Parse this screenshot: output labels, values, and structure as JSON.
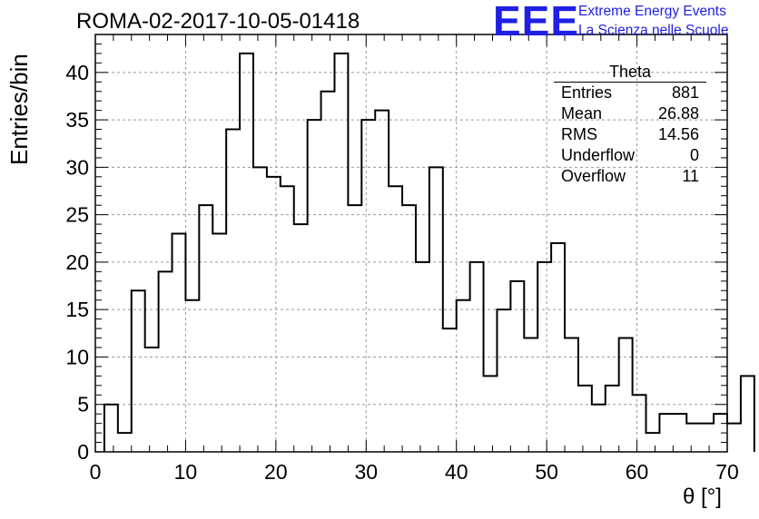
{
  "title": "ROMA-02-2017-10-05-01418",
  "logo": {
    "text": "EEE",
    "line1": "Extreme Energy Events",
    "line2": "La Scienza nelle Scuole",
    "color": "#1f1fe6"
  },
  "stats": {
    "name": "Theta",
    "rows": [
      {
        "label": "Entries",
        "value": "881"
      },
      {
        "label": "Mean",
        "value": "26.88"
      },
      {
        "label": "RMS",
        "value": "14.56"
      },
      {
        "label": "Underflow",
        "value": "0"
      },
      {
        "label": "Overflow",
        "value": "11"
      }
    ]
  },
  "chart_data": {
    "type": "histogram",
    "title": "ROMA-02-2017-10-05-01418",
    "xlabel": "θ [°]",
    "ylabel": "Entries/bin",
    "xlim": [
      0,
      70
    ],
    "ylim": [
      0,
      44
    ],
    "grid": true,
    "x_ticks": [
      0,
      10,
      20,
      30,
      40,
      50,
      60,
      70
    ],
    "y_ticks": [
      0,
      5,
      10,
      15,
      20,
      25,
      30,
      35,
      40
    ],
    "bin_width": 1.5,
    "bin_start": 1.0,
    "values": [
      5,
      2,
      17,
      11,
      19,
      23,
      16,
      26,
      23,
      34,
      42,
      30,
      29,
      28,
      24,
      35,
      38,
      42,
      26,
      35,
      36,
      28,
      26,
      20,
      30,
      13,
      16,
      20,
      8,
      15,
      18,
      12,
      20,
      22,
      12,
      7,
      5,
      7,
      12,
      6,
      2,
      4,
      4,
      3,
      3,
      4,
      3,
      8
    ]
  }
}
